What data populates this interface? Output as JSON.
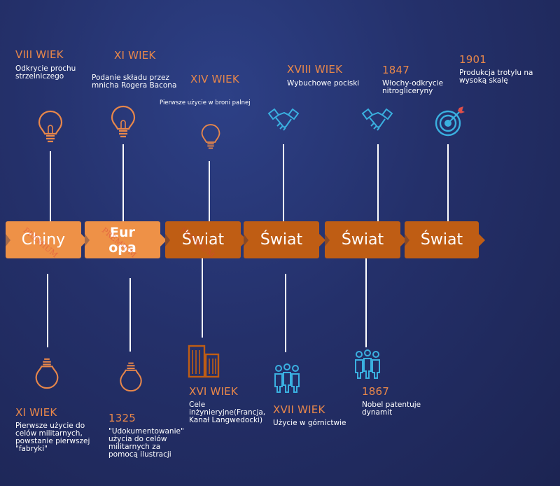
{
  "top_events": [
    {
      "heading": "VIII WIEK",
      "desc": "Odkrycie prochu strzelniczego"
    },
    {
      "heading": "XI WIEK",
      "desc": "Podanie składu przez mnicha Rogera Bacona"
    },
    {
      "heading": "XIV WIEK",
      "desc": "Pierwsze użycie w broni palnej"
    },
    {
      "heading": "XVIII WIEK",
      "desc": "Wybuchowe pociski"
    },
    {
      "heading": "1847",
      "desc": "Włochy-odkrycie nitrogliceryny"
    },
    {
      "heading": "1901",
      "desc": "Produkcja trotylu na wysoką skalę"
    }
  ],
  "bottom_events": [
    {
      "heading": "XI WIEK",
      "desc": "Pierwsze użycie do celów militarnych, powstanie pierwszej \"fabryki\""
    },
    {
      "heading": "1325",
      "desc": "\"Udokumentowanie\" użycia do celów militarnych za pomocą ilustracji"
    },
    {
      "heading": "XVI WIEK",
      "desc": "Cele inżynieryjne(Francja, Kanał Langwedocki)"
    },
    {
      "heading": "XVII WIEK",
      "desc": "Użycie w górnictwie"
    },
    {
      "heading": "1867",
      "desc": "Nobel patentuje dynamit"
    }
  ],
  "segments": [
    "Chiny",
    "Eur opa",
    "Świat",
    "Świat",
    "Świat",
    "Świat"
  ],
  "watermark": "PREMIUM",
  "colors": {
    "orange_light": "#ee9147",
    "orange_dark": "#bf5d14",
    "heading": "#e8874a",
    "icon_blue": "#3ab0e0",
    "background": "#24306a"
  },
  "icons": {
    "top": [
      "lightbulb-icon",
      "lightbulb-icon",
      "lightbulb-icon",
      "handshake-icon",
      "handshake-icon",
      "target-icon"
    ],
    "bottom": [
      "lightbulb-icon",
      "lightbulb-icon",
      "buildings-icon",
      "people-group-icon",
      "people-group-icon"
    ]
  }
}
